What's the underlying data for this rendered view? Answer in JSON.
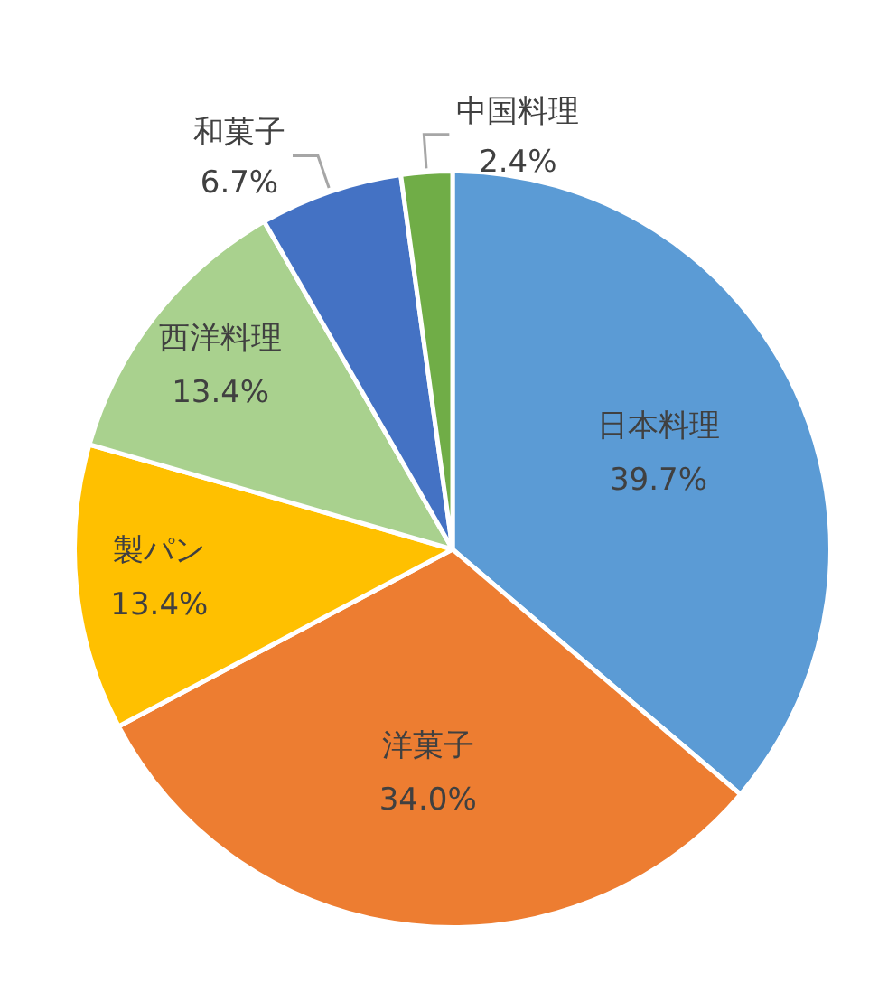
{
  "chart_data": {
    "type": "pie",
    "categories": [
      "日本料理",
      "洋菓子",
      "製パン",
      "西洋料理",
      "和菓子",
      "中国料理"
    ],
    "values": [
      39.7,
      34.0,
      13.4,
      13.4,
      6.7,
      2.4
    ],
    "value_labels": [
      "39.7%",
      "34.0%",
      "13.4%",
      "13.4%",
      "6.7%",
      "2.4%"
    ],
    "colors": [
      "#5b9bd5",
      "#ed7d31",
      "#ffc000",
      "#a9d18e",
      "#4472c4",
      "#70ad47"
    ],
    "legend": false
  }
}
